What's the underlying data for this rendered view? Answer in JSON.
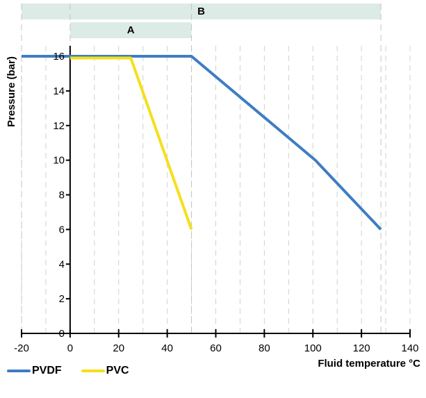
{
  "colors": {
    "pvdf": "#3d7dc4",
    "pvc": "#f5df1a",
    "band": "#dcebe6"
  },
  "chart_data": {
    "type": "line",
    "xlabel": "Fluid temperature °C",
    "ylabel": "Pressure (bar)",
    "xlim": [
      -20,
      140
    ],
    "ylim": [
      0,
      16
    ],
    "x_ticks": [
      -20,
      0,
      20,
      40,
      60,
      80,
      100,
      120,
      140
    ],
    "y_ticks": [
      0,
      2,
      4,
      6,
      8,
      10,
      12,
      14,
      16
    ],
    "grid": "vertical dashed",
    "legend_position": "bottom-left",
    "bands": [
      {
        "label": "B",
        "range": [
          -20,
          128
        ]
      },
      {
        "label": "A",
        "range": [
          0,
          50
        ]
      }
    ],
    "series": [
      {
        "name": "PVDF",
        "color": "#3d7dc4",
        "points": [
          [
            -20,
            16
          ],
          [
            50,
            16
          ],
          [
            101,
            10
          ],
          [
            128,
            6
          ]
        ]
      },
      {
        "name": "PVC",
        "color": "#f5df1a",
        "points": [
          [
            0,
            15.9
          ],
          [
            25,
            15.9
          ],
          [
            50,
            6
          ]
        ]
      }
    ]
  }
}
